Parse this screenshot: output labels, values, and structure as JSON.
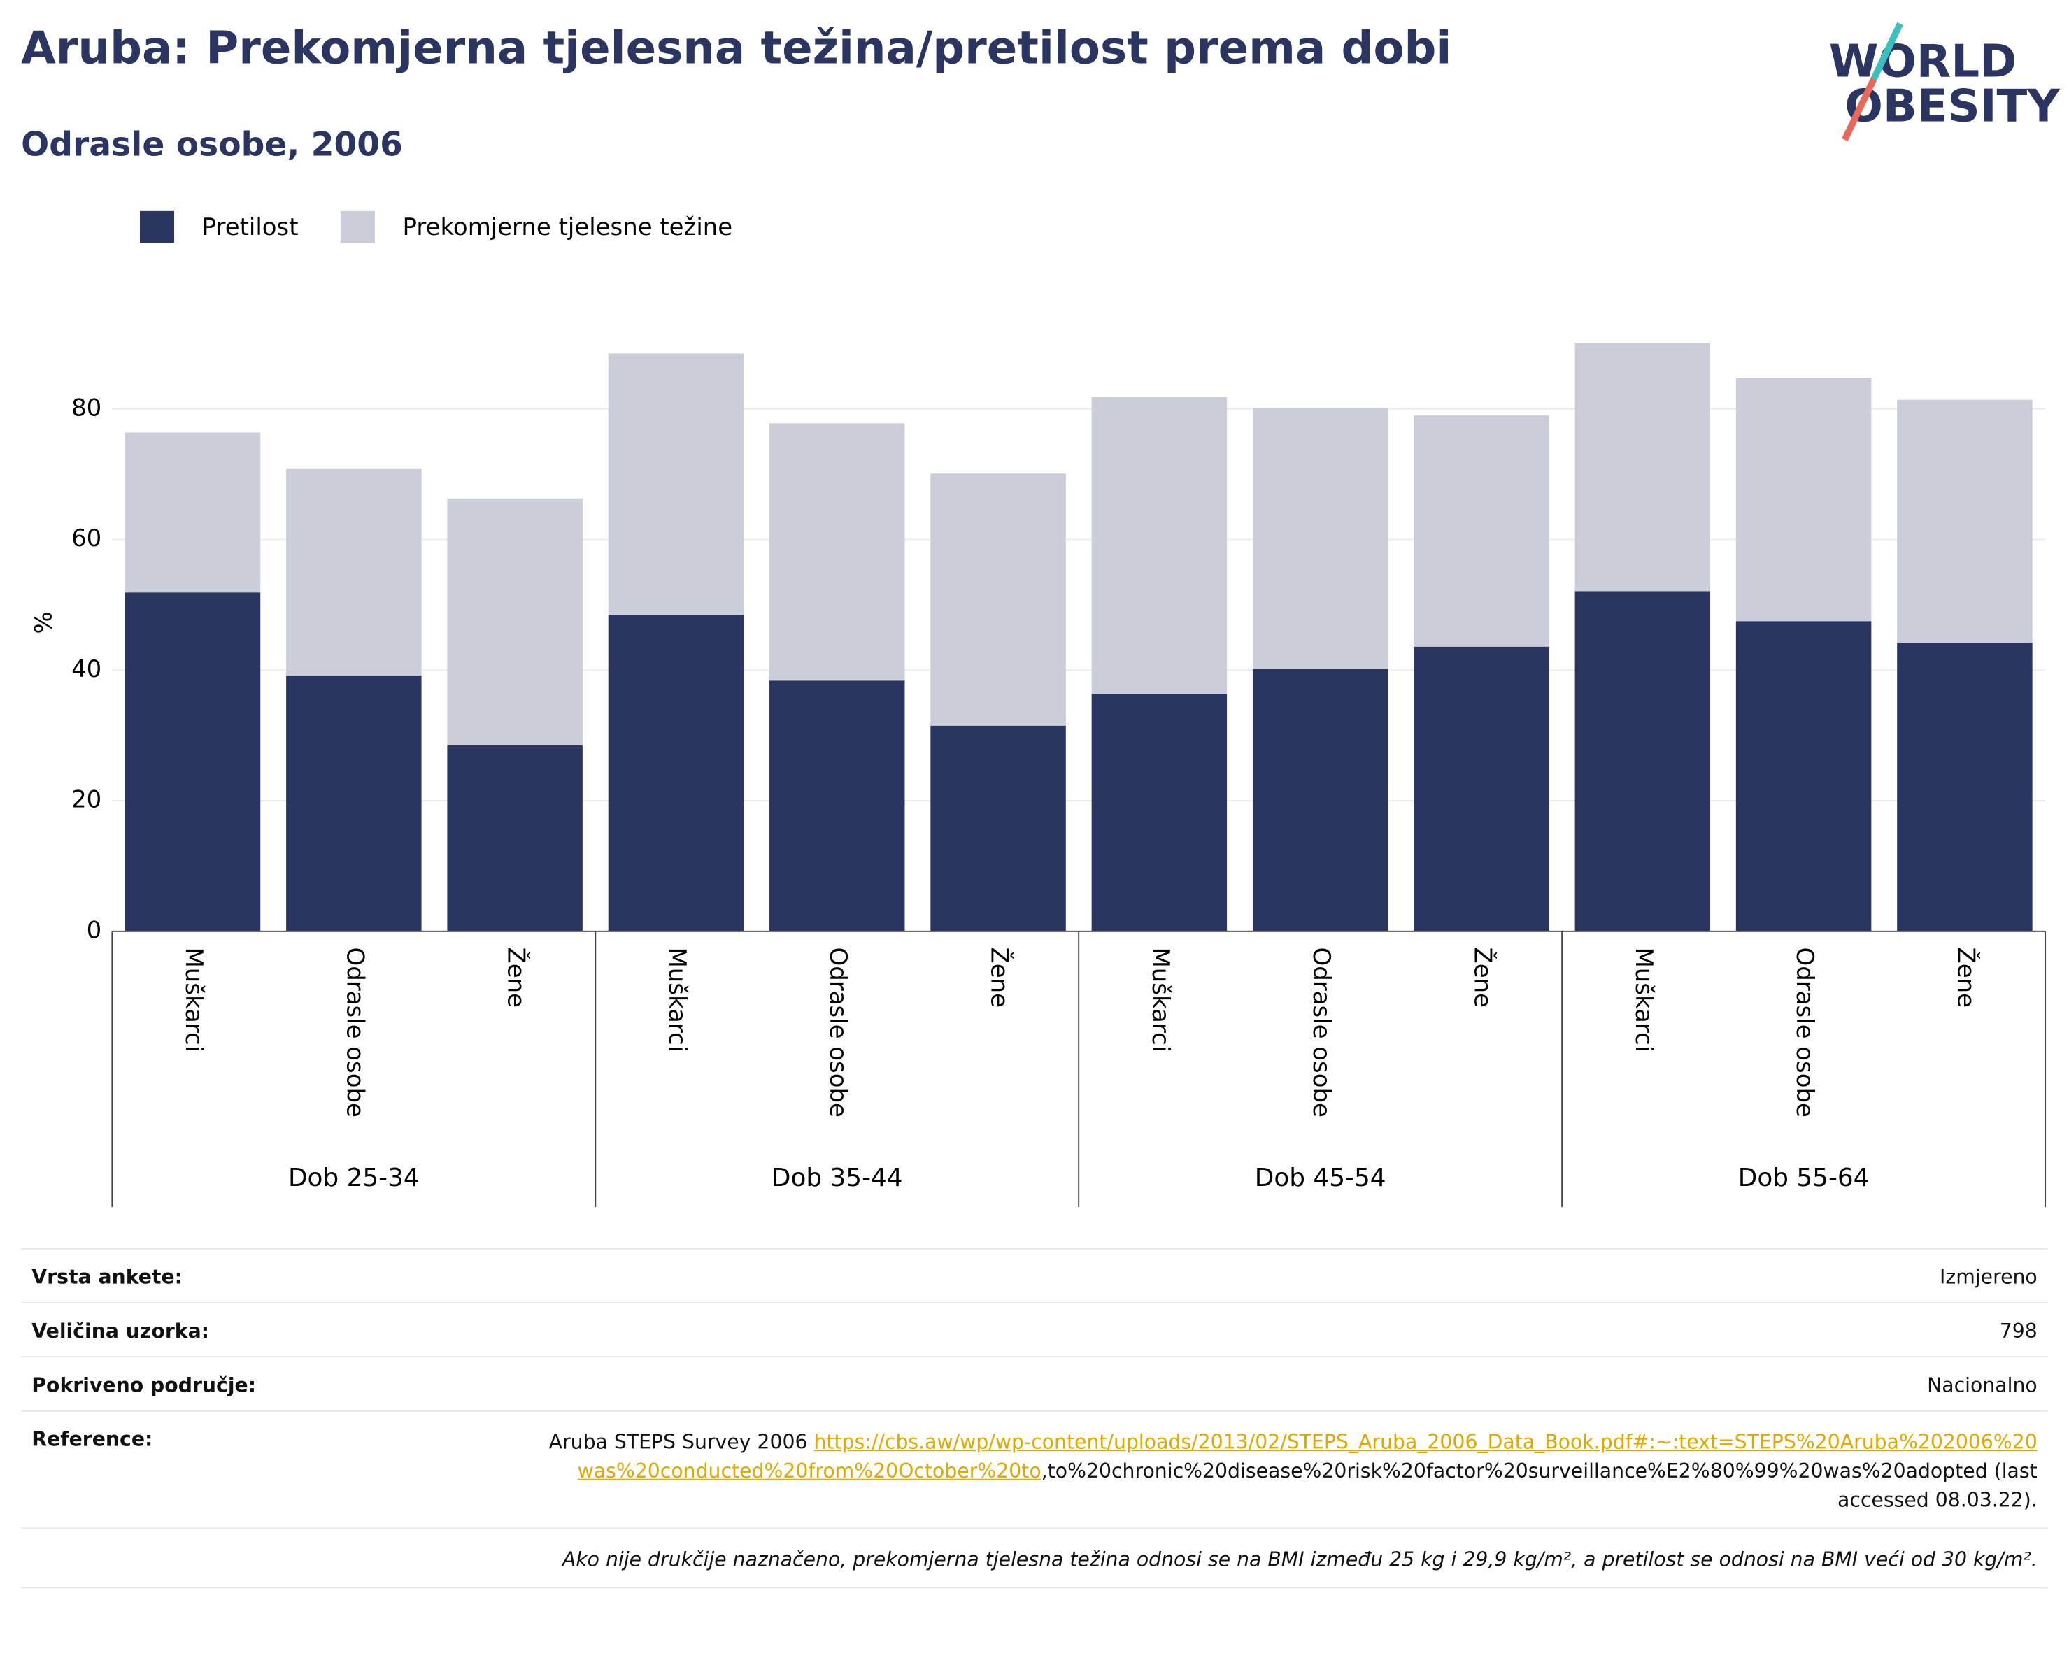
{
  "title": "Aruba: Prekomjerna tjelesna težina/pretilost prema dobi",
  "subtitle": "Odrasle osobe, 2006",
  "logo": [
    "WORLD",
    "OBESITY"
  ],
  "chart_data": {
    "type": "stacked-bar",
    "y_label": "%",
    "groups": [
      {
        "name": "Dob 25-34",
        "categories": [
          "Muškarci",
          "Odrasle osobe",
          "Žene"
        ]
      },
      {
        "name": "Dob 35-44",
        "categories": [
          "Muškarci",
          "Odrasle osobe",
          "Žene"
        ]
      },
      {
        "name": "Dob 45-54",
        "categories": [
          "Muškarci",
          "Odrasle osobe",
          "Žene"
        ]
      },
      {
        "name": "Dob 55-64",
        "categories": [
          "Muškarci",
          "Odrasle osobe",
          "Žene"
        ]
      }
    ],
    "series": [
      {
        "name": "Pretilost",
        "color": "#2b3562",
        "values": [
          51.9,
          39.2,
          28.5,
          48.5,
          38.4,
          31.5,
          36.4,
          40.2,
          43.6,
          52.1,
          47.5,
          44.2
        ]
      },
      {
        "name": "Prekomjerne tjelesne težine",
        "color": "#cbcdd8",
        "values": [
          24.5,
          31.7,
          37.8,
          40,
          39.4,
          38.6,
          45.4,
          40,
          35.4,
          38,
          37.3,
          37.2
        ]
      }
    ],
    "ylim": [
      0,
      92
    ],
    "yticks": [
      0,
      20,
      40,
      60,
      80
    ],
    "grid": true,
    "legend": "top-left"
  },
  "table": {
    "rows": [
      [
        "Vrsta ankete:",
        "Izmjereno"
      ],
      [
        "Veličina uzorka:",
        "798"
      ],
      [
        "Pokriveno područje:",
        "Nacionalno"
      ]
    ],
    "reference": {
      "label": "Reference:",
      "text": "Aruba STEPS Survey 2006 ",
      "link": "https://cbs.aw/wp/wp-content/uploads/2013/02/STEPS_Aruba_2006_Data_Book.pdf#:~:text=STEPS%20Aruba%202006%20was%20conducted%20from%20October%20to",
      "suffix": ",to%20chronic%20disease%20risk%20factor%20surveillance%E2%80%99%20was%20adopted (last accessed 08.03.22)."
    },
    "note": "Ako nije drukčije naznačeno, prekomjerna tjelesna težina odnosi se na BMI između 25 kg i 29,9 kg/m², a pretilost se odnosi na BMI veći od 30 kg/m²."
  }
}
